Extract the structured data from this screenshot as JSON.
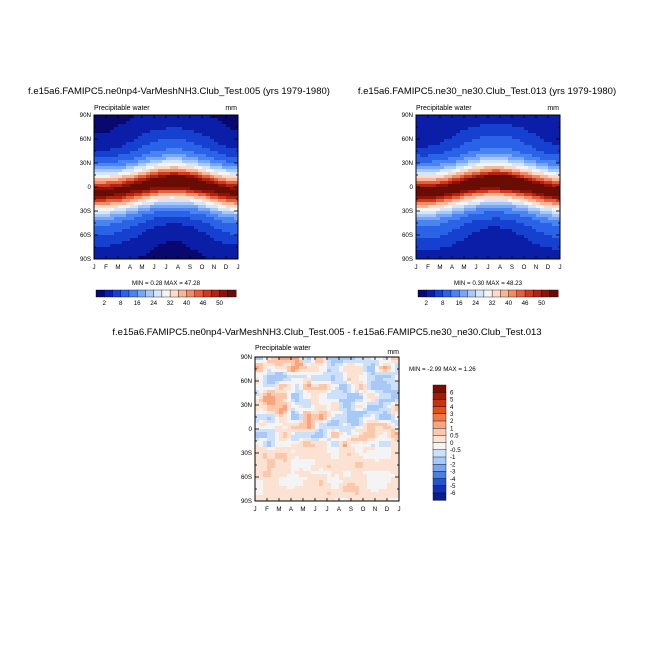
{
  "chart_data": [
    {
      "type": "heatmap",
      "title": "f.e15a6.FAMIPC5.ne0np4-VarMeshNH3.Club_Test.005 (yrs 1979-1980)",
      "variable": "Precipitable water",
      "units": "mm",
      "x_tick_labels": [
        "J",
        "F",
        "M",
        "A",
        "M",
        "J",
        "J",
        "A",
        "S",
        "O",
        "N",
        "D",
        "J"
      ],
      "y_tick_labels": [
        "90N",
        "60N",
        "30N",
        "0",
        "30S",
        "60S",
        "90S"
      ],
      "min_max": "MIN =   0.28 MAX =  47.28",
      "min": 0.28,
      "max": 47.28,
      "field": "zonal_climatology",
      "peak_offset": 0
    },
    {
      "type": "heatmap",
      "title": "f.e15a6.FAMIPC5.ne30_ne30.Club_Test.013 (yrs 1979-1980)",
      "variable": "Precipitable water",
      "units": "mm",
      "x_tick_labels": [
        "J",
        "F",
        "M",
        "A",
        "M",
        "J",
        "J",
        "A",
        "S",
        "O",
        "N",
        "D",
        "J"
      ],
      "y_tick_labels": [
        "90N",
        "60N",
        "30N",
        "0",
        "30S",
        "60S",
        "90S"
      ],
      "min_max": "MIN =   0.30 MAX =  48.23",
      "min": 0.3,
      "max": 48.23,
      "field": "zonal_climatology",
      "peak_offset": 0.95
    },
    {
      "type": "heatmap",
      "title": "f.e15a6.FAMIPC5.ne0np4-VarMeshNH3.Club_Test.005 - f.e15a6.FAMIPC5.ne30_ne30.Club_Test.013",
      "variable": "Precipitable water",
      "units": "mm",
      "x_tick_labels": [
        "J",
        "F",
        "M",
        "A",
        "M",
        "J",
        "J",
        "A",
        "S",
        "O",
        "N",
        "D",
        "J"
      ],
      "y_tick_labels": [
        "90N",
        "60N",
        "30N",
        "0",
        "30S",
        "60S",
        "90S"
      ],
      "min_max": "MIN =  -2.99 MAX =   1.26",
      "min": -2.99,
      "max": 1.26,
      "field": "difference"
    }
  ],
  "colorbar_top": {
    "labels": [
      "2",
      "8",
      "16",
      "24",
      "32",
      "40",
      "46",
      "50"
    ],
    "colors": [
      "#08086e",
      "#0a1ea8",
      "#1640d0",
      "#2a62e8",
      "#4a84f2",
      "#78a6f6",
      "#a8c8fa",
      "#d4e6fc",
      "#f4f4f4",
      "#fcdcc8",
      "#f8b898",
      "#f08c68",
      "#e4603c",
      "#d03a1c",
      "#b02410",
      "#8c1408",
      "#6a0c04"
    ]
  },
  "colorbar_diff": {
    "labels": [
      "6",
      "5",
      "4",
      "3",
      "2",
      "1",
      "0.5",
      "0",
      "-0.5",
      "-1",
      "-2",
      "-3",
      "-4",
      "-5",
      "-6"
    ],
    "colors": [
      "#7a0c04",
      "#a01c0a",
      "#c83214",
      "#e2501e",
      "#f07848",
      "#f8a47c",
      "#fcc8ac",
      "#fce2d2",
      "#f4f4f4",
      "#cce0fa",
      "#a8c8f6",
      "#7aa6f0",
      "#4a7ee4",
      "#2454d2",
      "#1230b4",
      "#0a1c8e"
    ]
  }
}
